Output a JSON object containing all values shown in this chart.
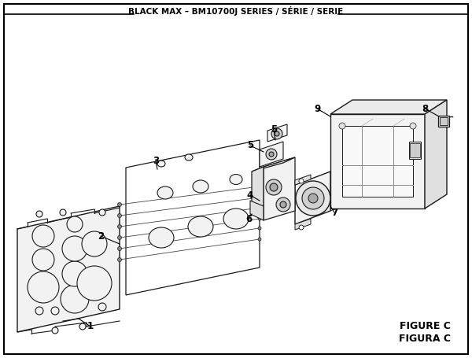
{
  "title": "BLACK MAX – BM10700J SERIES / SÉRIE / SERIE",
  "figure_label": "FIGURE C",
  "figure_label2": "FIGURA C",
  "bg_color": "#ffffff",
  "border_color": "#000000",
  "lc": "#1a1a1a",
  "lw": 0.8
}
